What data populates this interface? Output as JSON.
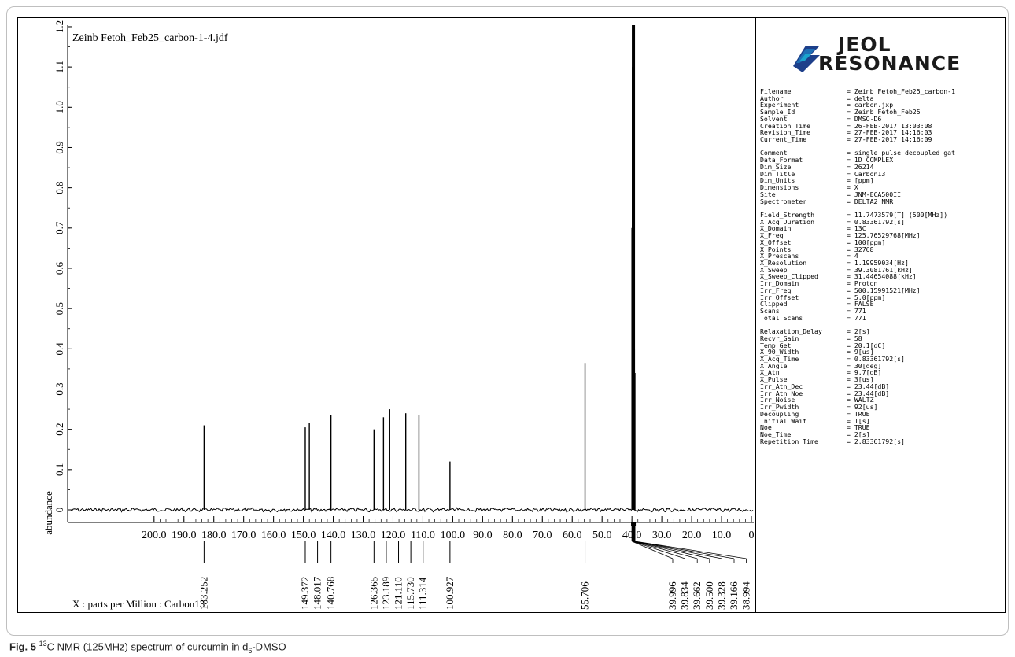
{
  "chart_data": {
    "type": "line",
    "title": "Zeinb Fetoh_Feb25_carbon-1-4.jdf",
    "xlabel": "X : parts per Million : Carbon13",
    "ylabel": "abundance",
    "xlim": [
      200.0,
      0
    ],
    "ylim": [
      -0.05,
      1.25
    ],
    "x_reversed": true,
    "x_ticks": [
      "200.0",
      "190.0",
      "180.0",
      "170.0",
      "160.0",
      "150.0",
      "140.0",
      "130.0",
      "120.0",
      "110.0",
      "100.0",
      "90.0",
      "80.0",
      "70.0",
      "60.0",
      "50.0",
      "40.0",
      "30.0",
      "20.0",
      "10.0",
      "0"
    ],
    "y_ticks": [
      "0",
      "0.1",
      "0.2",
      "0.3",
      "0.4",
      "0.5",
      "0.6",
      "0.7",
      "0.8",
      "0.9",
      "1.0",
      "1.1",
      "1.2"
    ],
    "grid": false,
    "peaks": [
      {
        "x": 183.252,
        "y": 0.21
      },
      {
        "x": 149.372,
        "y": 0.205
      },
      {
        "x": 148.017,
        "y": 0.215
      },
      {
        "x": 140.768,
        "y": 0.235
      },
      {
        "x": 126.365,
        "y": 0.2
      },
      {
        "x": 123.189,
        "y": 0.23
      },
      {
        "x": 121.11,
        "y": 0.25
      },
      {
        "x": 115.73,
        "y": 0.24
      },
      {
        "x": 111.314,
        "y": 0.235
      },
      {
        "x": 100.927,
        "y": 0.12
      },
      {
        "x": 55.706,
        "y": 0.365
      },
      {
        "x": 39.996,
        "y": 0.7
      },
      {
        "x": 39.834,
        "y": 1.1
      },
      {
        "x": 39.662,
        "y": 1.25
      },
      {
        "x": 39.5,
        "y": 1.25
      },
      {
        "x": 39.328,
        "y": 1.1
      },
      {
        "x": 39.166,
        "y": 0.4
      },
      {
        "x": 38.994,
        "y": 0.34
      }
    ],
    "peak_labels": [
      {
        "text": "183.252",
        "x": 183.252,
        "group": 1
      },
      {
        "text": "149.372",
        "x": 149.372,
        "group": 2
      },
      {
        "text": "148.017",
        "x": 148.017,
        "group": 2
      },
      {
        "text": "140.768",
        "x": 140.768,
        "group": 3
      },
      {
        "text": "126.365",
        "x": 126.365,
        "group": 4
      },
      {
        "text": "123.189",
        "x": 123.189,
        "group": 4
      },
      {
        "text": "121.110",
        "x": 121.11,
        "group": 4
      },
      {
        "text": "115.730",
        "x": 115.73,
        "group": 4
      },
      {
        "text": "111.314",
        "x": 111.314,
        "group": 4
      },
      {
        "text": "100.927",
        "x": 100.927,
        "group": 5
      },
      {
        "text": "55.706",
        "x": 55.706,
        "group": 6
      },
      {
        "text": "39.996",
        "x": 39.996,
        "group": 7
      },
      {
        "text": "39.834",
        "x": 39.834,
        "group": 7
      },
      {
        "text": "39.662",
        "x": 39.662,
        "group": 7
      },
      {
        "text": "39.500",
        "x": 39.5,
        "group": 7
      },
      {
        "text": "39.328",
        "x": 39.328,
        "group": 7
      },
      {
        "text": "39.166",
        "x": 39.166,
        "group": 7
      },
      {
        "text": "38.994",
        "x": 38.994,
        "group": 7
      }
    ]
  },
  "logo": {
    "line1": "JEOL",
    "line2": "RESONANCE",
    "colors": [
      "#1aa3cc",
      "#1f6fb5",
      "#1d3f8a"
    ]
  },
  "parameters": [
    [
      "Filename",
      "= Zeinb Fetoh_Feb25_carbon-1"
    ],
    [
      "Author",
      "= delta"
    ],
    [
      "Experiment",
      "= carbon.jxp"
    ],
    [
      "Sample_Id",
      "= Zeinb Fetoh_Feb25"
    ],
    [
      "Solvent",
      "= DMSO-D6"
    ],
    [
      "Creation_Time",
      "= 26-FEB-2017 13:03:08"
    ],
    [
      "Revision_Time",
      "= 27-FEB-2017 14:16:03"
    ],
    [
      "Current_Time",
      "= 27-FEB-2017 14:16:09"
    ],
    [
      "",
      ""
    ],
    [
      "Comment",
      "= single pulse decoupled gat"
    ],
    [
      "Data_Format",
      "= 1D COMPLEX"
    ],
    [
      "Dim_Size",
      "= 26214"
    ],
    [
      "Dim_Title",
      "= Carbon13"
    ],
    [
      "Dim_Units",
      "= [ppm]"
    ],
    [
      "Dimensions",
      "= X"
    ],
    [
      "Site",
      "= JNM-ECA500II"
    ],
    [
      "Spectrometer",
      "= DELTA2_NMR"
    ],
    [
      "",
      ""
    ],
    [
      "Field_Strength",
      "= 11.7473579[T] (500[MHz])"
    ],
    [
      "X_Acq_Duration",
      "= 0.83361792[s]"
    ],
    [
      "X_Domain",
      "= 13C"
    ],
    [
      "X_Freq",
      "= 125.76529768[MHz]"
    ],
    [
      "X_Offset",
      "= 100[ppm]"
    ],
    [
      "X_Points",
      "= 32768"
    ],
    [
      "X_Prescans",
      "= 4"
    ],
    [
      "X_Resolution",
      "= 1.19959034[Hz]"
    ],
    [
      "X_Sweep",
      "= 39.3081761[kHz]"
    ],
    [
      "X_Sweep_Clipped",
      "= 31.44654088[kHz]"
    ],
    [
      "Irr_Domain",
      "= Proton"
    ],
    [
      "Irr_Freq",
      "= 500.15991521[MHz]"
    ],
    [
      "Irr_Offset",
      "= 5.0[ppm]"
    ],
    [
      "Clipped",
      "= FALSE"
    ],
    [
      "Scans",
      "= 771"
    ],
    [
      "Total_Scans",
      "= 771"
    ],
    [
      "",
      ""
    ],
    [
      "Relaxation_Delay",
      "= 2[s]"
    ],
    [
      "Recvr_Gain",
      "= 58"
    ],
    [
      "Temp_Get",
      "= 20.1[dC]"
    ],
    [
      "X_90_Width",
      "= 9[us]"
    ],
    [
      "X_Acq_Time",
      "= 0.83361792[s]"
    ],
    [
      "X_Angle",
      "= 30[deg]"
    ],
    [
      "X_Atn",
      "= 9.7[dB]"
    ],
    [
      "X_Pulse",
      "= 3[us]"
    ],
    [
      "Irr_Atn_Dec",
      "= 23.44[dB]"
    ],
    [
      "Irr_Atn_Noe",
      "= 23.44[dB]"
    ],
    [
      "Irr_Noise",
      "= WALTZ"
    ],
    [
      "Irr_Pwidth",
      "= 92[us]"
    ],
    [
      "Decoupling",
      "= TRUE"
    ],
    [
      "Initial_Wait",
      "= 1[s]"
    ],
    [
      "Noe",
      "= TRUE"
    ],
    [
      "Noe_Time",
      "= 2[s]"
    ],
    [
      "Repetition_Time",
      "= 2.83361792[s]"
    ]
  ],
  "caption": {
    "label": "Fig. 5",
    "sup": "13",
    "text_a": "C NMR (125MHz) spectrum of curcumin in d",
    "sub": "6",
    "text_b": "-DMSO"
  }
}
